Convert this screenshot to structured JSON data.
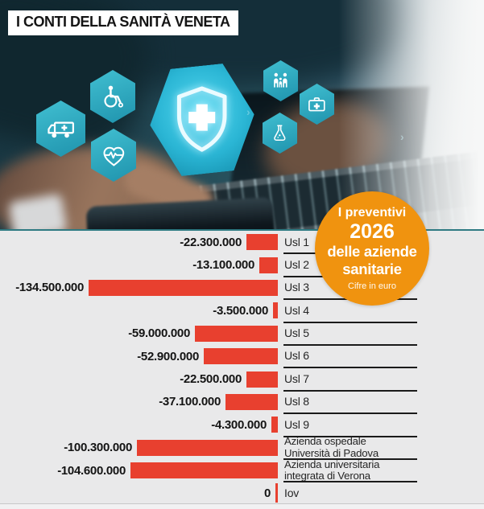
{
  "header": {
    "title": "I CONTI DELLA SANITÀ VENETA"
  },
  "hero": {
    "icons": [
      "ambulance-icon",
      "wheelchair-icon",
      "heart-pulse-icon",
      "shield-cross-icon",
      "family-icon",
      "first-aid-kit-icon",
      "flask-icon"
    ]
  },
  "badge": {
    "line1": "I preventivi",
    "line2": "2026",
    "line3": "delle aziende",
    "line4": "sanitarie",
    "note": "Cifre in euro",
    "color": "#f0930f"
  },
  "chart_data": {
    "type": "bar",
    "orientation": "horizontal",
    "unit": "euro",
    "title": "I preventivi 2026 delle aziende sanitarie",
    "categories": [
      "Usl 1",
      "Usl 2",
      "Usl 3",
      "Usl 4",
      "Usl 5",
      "Usl 6",
      "Usl 7",
      "Usl 8",
      "Usl 9",
      "Azienda ospedale\nUniversità di Padova",
      "Azienda universitaria\nintegrata di Verona",
      "Iov"
    ],
    "values": [
      -22300000,
      -13100000,
      -134500000,
      -3500000,
      -59000000,
      -52900000,
      -22500000,
      -37100000,
      -4300000,
      -100300000,
      -104600000,
      0
    ],
    "value_labels": [
      "-22.300.000",
      "-13.100.000",
      "-134.500.000",
      "-3.500.000",
      "-59.000.000",
      "-52.900.000",
      "-22.500.000",
      "-37.100.000",
      "-4.300.000",
      "-100.300.000",
      "-104.600.000",
      "0"
    ],
    "xlim": [
      -140000000,
      0
    ],
    "bar_color": "#e8402f",
    "value_side": "left",
    "label_side": "right",
    "grid": false,
    "legend": false
  },
  "colors": {
    "accent_red": "#e8402f",
    "accent_orange": "#f0930f",
    "chart_background": "#e9e9ea",
    "photo_teal": "#24505c",
    "hexagon_teal": "#2fa9bd"
  }
}
